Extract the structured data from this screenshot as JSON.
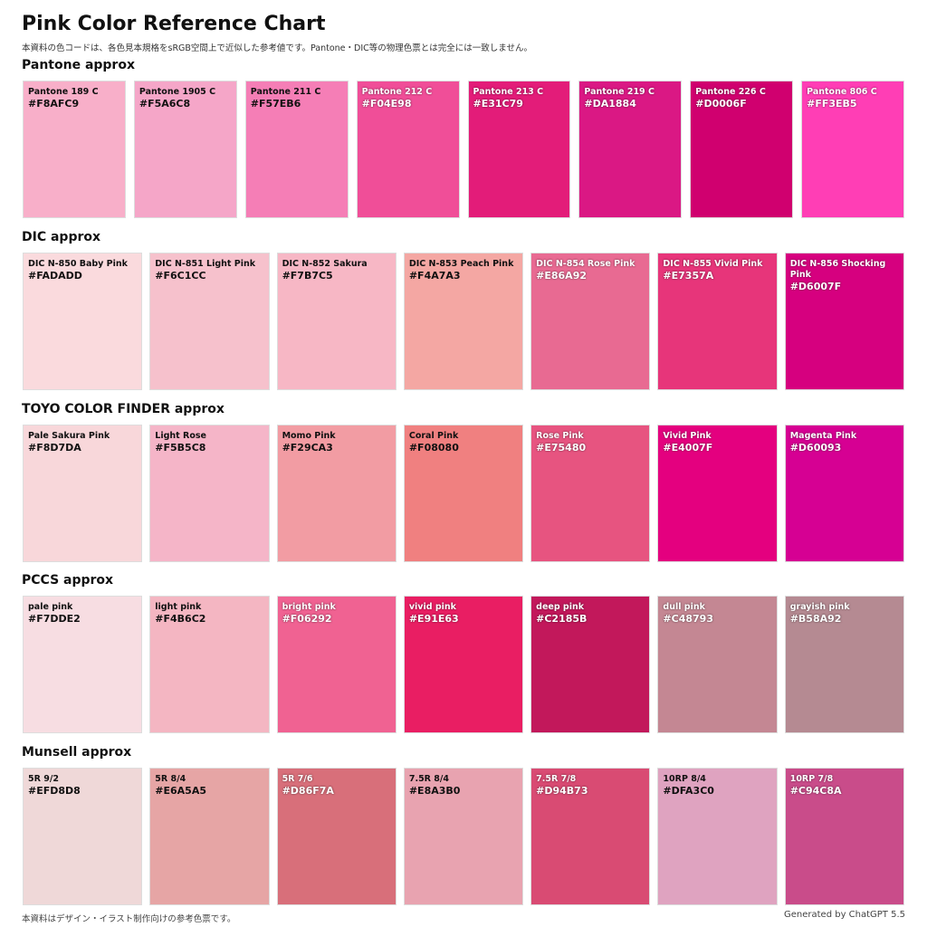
{
  "header": {
    "title": "Pink Color Reference Chart",
    "subtitle": "本資料の色コードは、各色見本規格をsRGB空間上で近似した参考値です。Pantone・DIC等の物理色票とは完全には一致しません。"
  },
  "sections": [
    {
      "title": "Pantone approx",
      "swatches": [
        {
          "name": "Pantone 189 C",
          "hex": "#F8AFC9"
        },
        {
          "name": "Pantone 1905 C",
          "hex": "#F5A6C8"
        },
        {
          "name": "Pantone 211 C",
          "hex": "#F57EB6"
        },
        {
          "name": "Pantone 212 C",
          "hex": "#F04E98"
        },
        {
          "name": "Pantone 213 C",
          "hex": "#E31C79"
        },
        {
          "name": "Pantone 219 C",
          "hex": "#DA1884"
        },
        {
          "name": "Pantone 226 C",
          "hex": "#D0006F"
        },
        {
          "name": "Pantone 806 C",
          "hex": "#FF3EB5"
        }
      ]
    },
    {
      "title": "DIC approx",
      "swatches": [
        {
          "name": "DIC N-850 Baby Pink",
          "hex": "#FADADD"
        },
        {
          "name": "DIC N-851 Light Pink",
          "hex": "#F6C1CC"
        },
        {
          "name": "DIC N-852 Sakura",
          "hex": "#F7B7C5"
        },
        {
          "name": "DIC N-853 Peach Pink",
          "hex": "#F4A7A3"
        },
        {
          "name": "DIC N-854 Rose Pink",
          "hex": "#E86A92"
        },
        {
          "name": "DIC N-855 Vivid Pink",
          "hex": "#E7357A"
        },
        {
          "name": "DIC N-856 Shocking Pink",
          "hex": "#D6007F"
        }
      ]
    },
    {
      "title": "TOYO COLOR FINDER approx",
      "swatches": [
        {
          "name": "Pale Sakura Pink",
          "hex": "#F8D7DA"
        },
        {
          "name": "Light Rose",
          "hex": "#F5B5C8"
        },
        {
          "name": "Momo Pink",
          "hex": "#F29CA3"
        },
        {
          "name": "Coral Pink",
          "hex": "#F08080"
        },
        {
          "name": "Rose Pink",
          "hex": "#E75480"
        },
        {
          "name": "Vivid Pink",
          "hex": "#E4007F"
        },
        {
          "name": "Magenta Pink",
          "hex": "#D60093"
        }
      ]
    },
    {
      "title": "PCCS approx",
      "swatches": [
        {
          "name": "pale pink",
          "hex": "#F7DDE2"
        },
        {
          "name": "light pink",
          "hex": "#F4B6C2"
        },
        {
          "name": "bright pink",
          "hex": "#F06292"
        },
        {
          "name": "vivid pink",
          "hex": "#E91E63"
        },
        {
          "name": "deep pink",
          "hex": "#C2185B"
        },
        {
          "name": "dull pink",
          "hex": "#C48793"
        },
        {
          "name": "grayish pink",
          "hex": "#B58A92"
        }
      ]
    },
    {
      "title": "Munsell approx",
      "swatches": [
        {
          "name": "5R 9/2",
          "hex": "#EFD8D8"
        },
        {
          "name": "5R 8/4",
          "hex": "#E6A5A5"
        },
        {
          "name": "5R 7/6",
          "hex": "#D86F7A"
        },
        {
          "name": "7.5R 8/4",
          "hex": "#E8A3B0"
        },
        {
          "name": "7.5R 7/8",
          "hex": "#D94B73"
        },
        {
          "name": "10RP 8/4",
          "hex": "#DFA3C0"
        },
        {
          "name": "10RP 7/8",
          "hex": "#C94C8A"
        }
      ]
    }
  ],
  "footer": {
    "note": "本資料はデザイン・イラスト制作向けの参考色票です。",
    "credit": "Generated by ChatGPT 5.5"
  }
}
